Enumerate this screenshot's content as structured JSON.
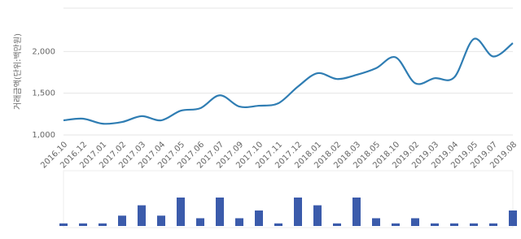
{
  "chart_data": [
    {
      "type": "line",
      "y_label": "거래금액(단위:백만원)",
      "categories": [
        "2016.10",
        "2016.12",
        "2017.01",
        "2017.02",
        "2017.03",
        "2017.04",
        "2017.05",
        "2017.06",
        "2017.07",
        "2017.09",
        "2017.10",
        "2017.11",
        "2017.12",
        "2018.01",
        "2018.02",
        "2018.03",
        "2018.05",
        "2018.10",
        "2019.02",
        "2019.03",
        "2019.04",
        "2019.05",
        "2019.07",
        "2019.08"
      ],
      "values": [
        1175,
        1195,
        1135,
        1155,
        1225,
        1175,
        1290,
        1320,
        1475,
        1340,
        1350,
        1380,
        1580,
        1740,
        1670,
        1720,
        1800,
        1930,
        1620,
        1680,
        1690,
        2150,
        1940,
        2100
      ],
      "color": "#2f7db3",
      "ylim": [
        1000,
        2500
      ],
      "yticks": [
        {
          "value": 1000,
          "label": "1,000"
        },
        {
          "value": 1500,
          "label": "1,500"
        },
        {
          "value": 2000,
          "label": "2,000"
        }
      ],
      "grid": true
    },
    {
      "type": "bar",
      "values": [
        1,
        1,
        1,
        4,
        8,
        4,
        11,
        3,
        11,
        3,
        6,
        1,
        11,
        8,
        1,
        11,
        3,
        1,
        3,
        1,
        1,
        1,
        1,
        6
      ],
      "color": "#3b5bab",
      "ylim": [
        0,
        11
      ]
    }
  ]
}
